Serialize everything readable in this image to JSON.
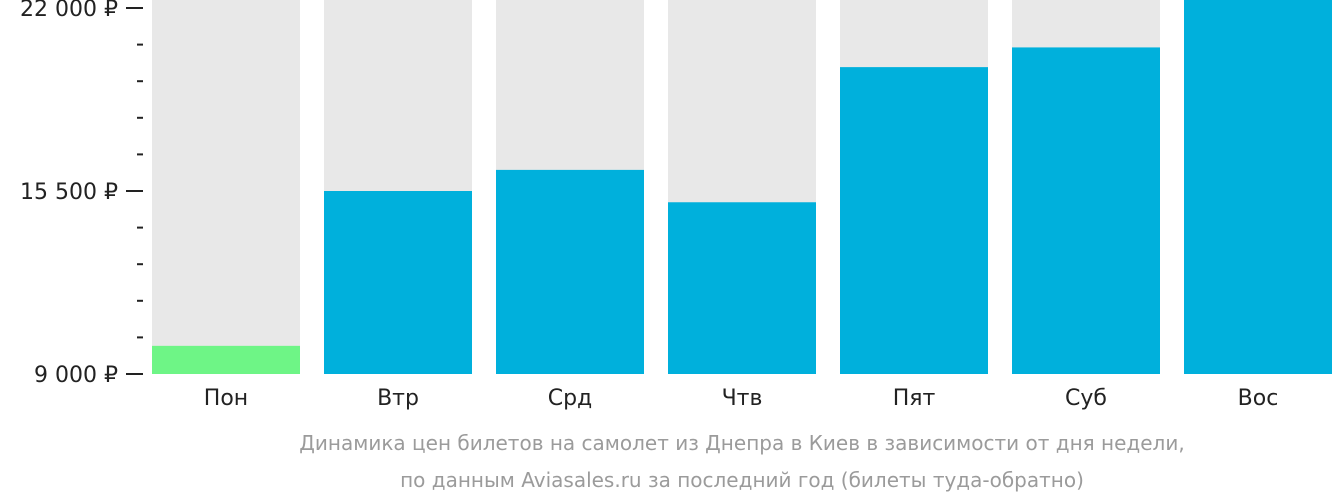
{
  "chart_data": {
    "type": "bar",
    "categories": [
      "Пон",
      "Втр",
      "Срд",
      "Чтв",
      "Пят",
      "Суб",
      "Вос"
    ],
    "values": [
      10000,
      15500,
      16250,
      15100,
      19900,
      20600,
      22400
    ],
    "highlight_index": 0,
    "ylim": [
      9000,
      22000
    ],
    "yticks": [
      {
        "value": 22000,
        "label": "22 000 ₽"
      },
      {
        "value": 15500,
        "label": "15 500 ₽"
      },
      {
        "value": 9000,
        "label": "9 000 ₽"
      }
    ],
    "minor_ticks": [
      20700,
      19400,
      18100,
      16800,
      14200,
      12900,
      11600,
      10300
    ],
    "caption_line1": "Динамика цен билетов на самолет из Днепра в Киев в зависимости от дня недели,",
    "caption_line2": "по данным Aviasales.ru за последний год (билеты туда-обратно)",
    "colors": {
      "bar": "#00b0dc",
      "highlight": "#6ef586",
      "background_bar": "#e8e8e8",
      "axis_text": "#222222",
      "caption": "#9b9b9b"
    }
  }
}
